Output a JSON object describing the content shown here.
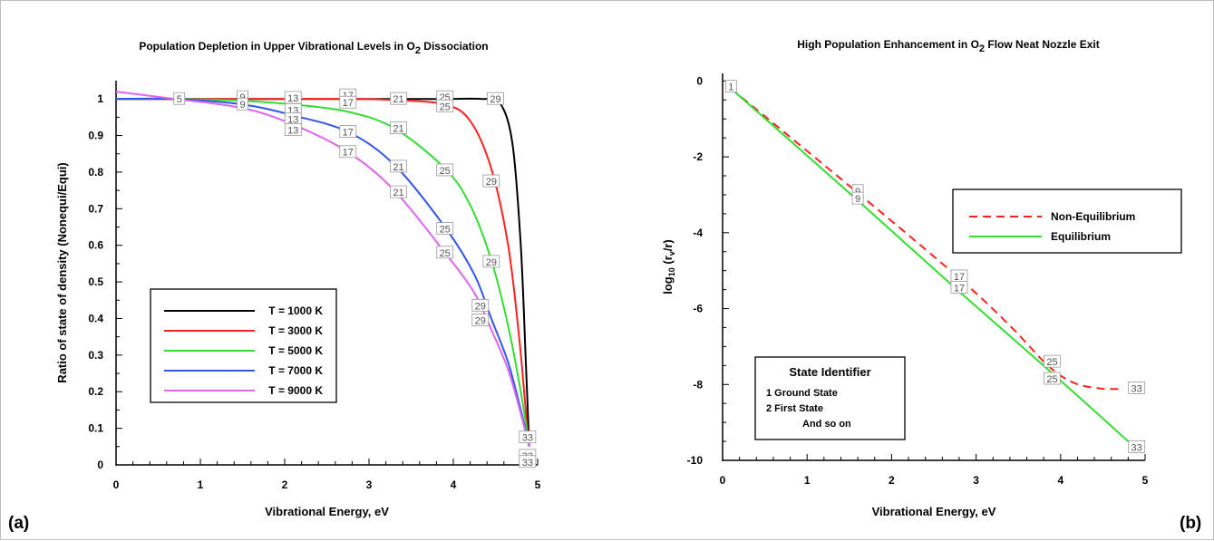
{
  "panel_labels": {
    "a": "(a)",
    "b": "(b)"
  },
  "chart_data": [
    {
      "type": "line",
      "title": "Population Depletion in Upper Vibrational Levels in O",
      "title_sub": "2",
      "title_end": " Dissociation",
      "xlabel": "Vibrational Energy, eV",
      "ylabel": "Ratio of state of density (Nonequi/Equi)",
      "xlim": [
        0,
        5
      ],
      "ylim": [
        0,
        1.05
      ],
      "xticks": [
        "0",
        "1",
        "2",
        "3",
        "4",
        "5"
      ],
      "yticks": [
        "0",
        "0.1",
        "0.2",
        "0.3",
        "0.4",
        "0.5",
        "0.6",
        "0.7",
        "0.8",
        "0.9",
        "1"
      ],
      "legend_position": "center",
      "series": [
        {
          "name": "T = 1000 K",
          "color": "#000000",
          "x": [
            0,
            0.7,
            1.5,
            2.1,
            2.75,
            3.3,
            3.9,
            4.35,
            4.55,
            4.7,
            4.8,
            4.86,
            4.9
          ],
          "y": [
            1.0,
            1.0,
            1.0,
            1.0,
            1.0,
            1.0,
            1.0,
            1.0,
            0.99,
            0.88,
            0.6,
            0.28,
            0.05
          ]
        },
        {
          "name": "T = 3000 K",
          "color": "#ff2020",
          "x": [
            0,
            0.7,
            1.5,
            2.1,
            2.75,
            3.3,
            3.9,
            4.2,
            4.45,
            4.65,
            4.78,
            4.87,
            4.9
          ],
          "y": [
            1.0,
            1.0,
            1.0,
            1.0,
            1.0,
            0.997,
            0.985,
            0.94,
            0.81,
            0.6,
            0.35,
            0.12,
            0.05
          ]
        },
        {
          "name": "T = 5000 K",
          "color": "#33dd33",
          "x": [
            0,
            0.7,
            1.5,
            2.1,
            2.75,
            3.3,
            3.9,
            4.2,
            4.45,
            4.65,
            4.8,
            4.9
          ],
          "y": [
            1.0,
            1.0,
            0.995,
            0.985,
            0.965,
            0.92,
            0.81,
            0.71,
            0.56,
            0.38,
            0.2,
            0.05
          ]
        },
        {
          "name": "T = 7000 K",
          "color": "#3355ee",
          "x": [
            0,
            0.7,
            1.5,
            2.1,
            2.75,
            3.3,
            3.9,
            4.25,
            4.45,
            4.65,
            4.8,
            4.9
          ],
          "y": [
            1.0,
            1.0,
            0.985,
            0.955,
            0.91,
            0.82,
            0.65,
            0.52,
            0.4,
            0.28,
            0.15,
            0.05
          ]
        },
        {
          "name": "T = 9000 K",
          "color": "#dd66ee",
          "x": [
            0,
            0.7,
            1.5,
            2.1,
            2.75,
            3.3,
            3.9,
            4.25,
            4.45,
            4.65,
            4.8,
            4.9
          ],
          "y": [
            1.02,
            1.0,
            0.975,
            0.93,
            0.855,
            0.75,
            0.58,
            0.47,
            0.37,
            0.26,
            0.14,
            0.05
          ]
        }
      ],
      "annotations": [
        {
          "text": "5",
          "x": 0.75,
          "y": 1.0
        },
        {
          "text": "9",
          "x": 1.5,
          "y": 1.005
        },
        {
          "text": "9",
          "x": 1.5,
          "y": 0.985
        },
        {
          "text": "13",
          "x": 2.1,
          "y": 1.003
        },
        {
          "text": "13",
          "x": 2.1,
          "y": 0.97
        },
        {
          "text": "13",
          "x": 2.1,
          "y": 0.945
        },
        {
          "text": "13",
          "x": 2.1,
          "y": 0.915
        },
        {
          "text": "17",
          "x": 2.75,
          "y": 1.01
        },
        {
          "text": "17",
          "x": 2.75,
          "y": 0.99
        },
        {
          "text": "17",
          "x": 2.75,
          "y": 0.91
        },
        {
          "text": "17",
          "x": 2.75,
          "y": 0.855
        },
        {
          "text": "21",
          "x": 3.35,
          "y": 1.0
        },
        {
          "text": "21",
          "x": 3.35,
          "y": 0.92
        },
        {
          "text": "21",
          "x": 3.35,
          "y": 0.815
        },
        {
          "text": "21",
          "x": 3.35,
          "y": 0.745
        },
        {
          "text": "25",
          "x": 3.9,
          "y": 1.005
        },
        {
          "text": "25",
          "x": 3.9,
          "y": 0.98
        },
        {
          "text": "25",
          "x": 3.9,
          "y": 0.805
        },
        {
          "text": "25",
          "x": 3.9,
          "y": 0.645
        },
        {
          "text": "25",
          "x": 3.9,
          "y": 0.58
        },
        {
          "text": "29",
          "x": 4.5,
          "y": 1.0
        },
        {
          "text": "29",
          "x": 4.45,
          "y": 0.775
        },
        {
          "text": "29",
          "x": 4.45,
          "y": 0.555
        },
        {
          "text": "29",
          "x": 4.32,
          "y": 0.435
        },
        {
          "text": "29",
          "x": 4.32,
          "y": 0.395
        },
        {
          "text": "33",
          "x": 4.88,
          "y": 0.075
        },
        {
          "text": "33",
          "x": 4.88,
          "y": 0.025
        },
        {
          "text": "33",
          "x": 4.88,
          "y": 0.008
        }
      ]
    },
    {
      "type": "line",
      "title": "High Population Enhancement in O",
      "title_sub": "2",
      "title_end": " Flow Neat Nozzle Exit",
      "xlabel": "Vibrational Energy, eV",
      "ylabel": "log10 (rv/r)",
      "ylabel_parts": {
        "main": "log",
        "sub": "10",
        "rest": " (r",
        "sub2": "v",
        "end": "/r)"
      },
      "xlim": [
        0,
        5
      ],
      "ylim": [
        -10,
        0.2
      ],
      "xticks": [
        "0",
        "1",
        "2",
        "3",
        "4",
        "5"
      ],
      "yticks": [
        "-10",
        "-8",
        "-6",
        "-4",
        "-2",
        "0"
      ],
      "legend_position": "top-right",
      "series": [
        {
          "name": "Non-Equilibrium",
          "color": "#ff2020",
          "dashed": true,
          "x": [
            0.1,
            1.6,
            2.8,
            3.4,
            3.85,
            4.15,
            4.45,
            4.7
          ],
          "y": [
            -0.2,
            -2.95,
            -5.2,
            -6.45,
            -7.5,
            -7.95,
            -8.1,
            -8.12
          ]
        },
        {
          "name": "Equilibrium",
          "color": "#33dd33",
          "x": [
            0.1,
            1.6,
            2.8,
            3.9,
            4.9
          ],
          "y": [
            -0.2,
            -3.15,
            -5.55,
            -7.7,
            -9.7
          ]
        }
      ],
      "annotations": [
        {
          "text": "1",
          "x": 0.1,
          "y": -0.15
        },
        {
          "text": "9",
          "x": 1.6,
          "y": -2.9
        },
        {
          "text": "9",
          "x": 1.6,
          "y": -3.1
        },
        {
          "text": "17",
          "x": 2.8,
          "y": -5.15
        },
        {
          "text": "17",
          "x": 2.8,
          "y": -5.45
        },
        {
          "text": "25",
          "x": 3.9,
          "y": -7.4
        },
        {
          "text": "25",
          "x": 3.9,
          "y": -7.85
        },
        {
          "text": "33",
          "x": 4.9,
          "y": -8.1
        },
        {
          "text": "33",
          "x": 4.9,
          "y": -9.65
        }
      ],
      "state_identifier": {
        "title": "State Identifier",
        "lines": [
          "1 Ground State",
          "2 First State",
          "And so on"
        ]
      }
    }
  ]
}
